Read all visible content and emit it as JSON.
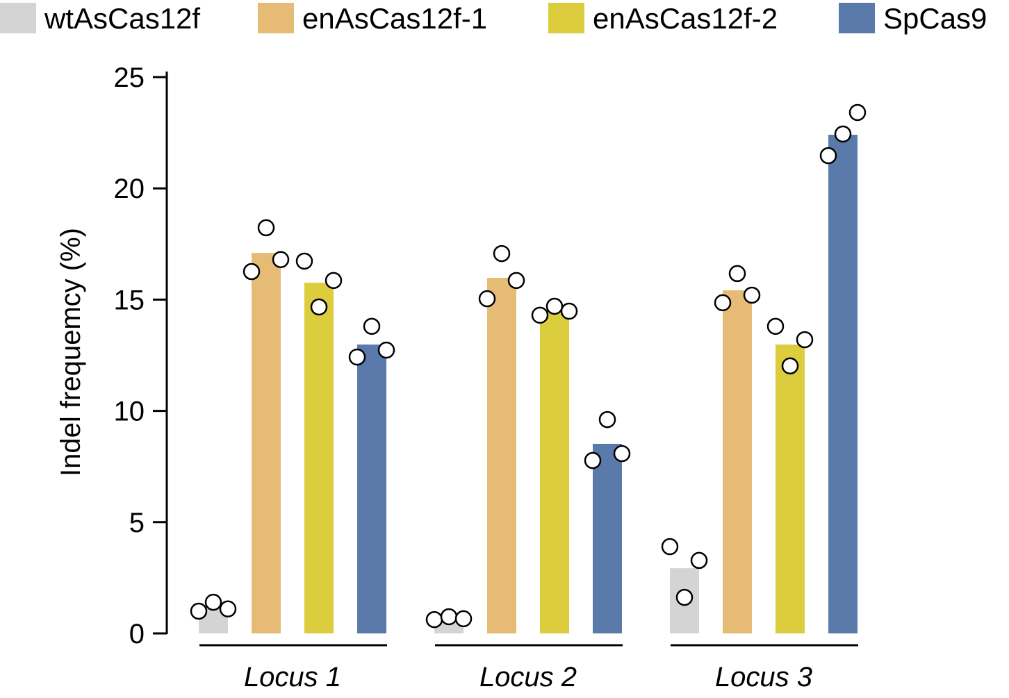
{
  "chart_data": {
    "type": "bar",
    "title": "",
    "xlabel": "",
    "ylabel": "Indel frequemcy  (%)",
    "ylim": [
      0,
      25
    ],
    "yticks": [
      0,
      5,
      10,
      15,
      20,
      25
    ],
    "grid": false,
    "legend_position": "top",
    "categories": [
      "Locus 1",
      "Locus 2",
      "Locus 3"
    ],
    "series": [
      {
        "name": "wtAsCas12f",
        "color": "#d4d4d4",
        "values": [
          1.15,
          0.6,
          2.93
        ],
        "points": [
          [
            1.0,
            1.4,
            1.1
          ],
          [
            0.62,
            0.75,
            0.66
          ],
          [
            3.9,
            1.62,
            3.28
          ]
        ]
      },
      {
        "name": "enAsCas12f-1",
        "color": "#e6bb76",
        "values": [
          17.1,
          15.98,
          15.42
        ],
        "points": [
          [
            16.26,
            18.23,
            16.8
          ],
          [
            15.04,
            17.07,
            15.86
          ],
          [
            14.86,
            16.17,
            15.2
          ]
        ]
      },
      {
        "name": "enAsCas12f-2",
        "color": "#dccd3f",
        "values": [
          15.76,
          14.48,
          12.98
        ],
        "points": [
          [
            16.73,
            14.67,
            15.86
          ],
          [
            14.3,
            14.7,
            14.48
          ],
          [
            13.8,
            12.02,
            13.2
          ]
        ]
      },
      {
        "name": "SpCas9",
        "color": "#5a7aab",
        "values": [
          12.98,
          8.52,
          22.41
        ],
        "points": [
          [
            12.42,
            13.8,
            12.73
          ],
          [
            7.77,
            9.61,
            8.08
          ],
          [
            21.47,
            22.44,
            23.41
          ]
        ]
      }
    ]
  }
}
